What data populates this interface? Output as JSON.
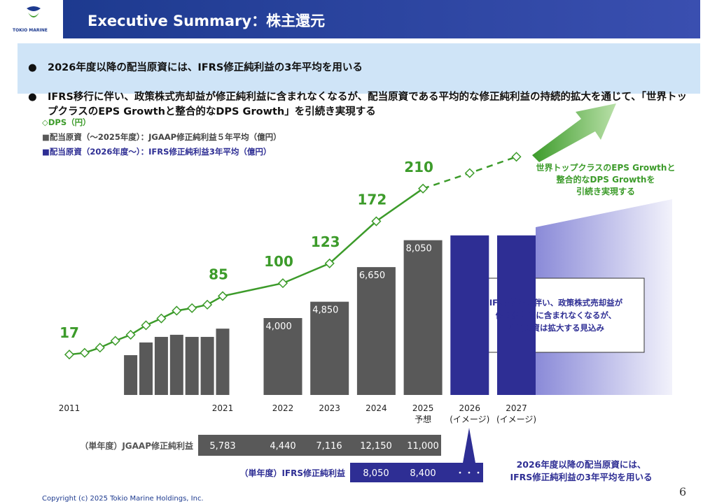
{
  "header": {
    "title": "Executive Summary：株主還元",
    "logo": "TOKIO MARINE"
  },
  "bullets": [
    "2026年度以降の配当原資には、IFRS修正純利益の3年平均を用いる",
    "IFRS移行に伴い、政策株式売却益が修正純利益に含まれなくなるが、配当原資である平均的な修正純利益の持続的拡大を通じて、「世界トップクラスのEPS Growthと整合的なDPS Growth」を引続き実現する"
  ],
  "chart_data": {
    "type": "combo",
    "categories": [
      "2011",
      null,
      null,
      null,
      null,
      null,
      null,
      null,
      null,
      null,
      "2021",
      "2022",
      "2023",
      "2024",
      "2025\n予想",
      "2026\n(イメージ)",
      "2027\n(イメージ)"
    ],
    "ylim": [
      0,
      14000
    ],
    "y2lim": [
      -30,
      283
    ],
    "series": [
      {
        "name": "配当原資（～2025年度）：JGAAP修正純利益５年平均（億円）",
        "type": "bar",
        "color": "#595959",
        "values": [
          null,
          null,
          null,
          null,
          2070,
          2730,
          3020,
          3130,
          3020,
          3020,
          3450,
          4000,
          4850,
          6650,
          8050,
          null,
          null
        ],
        "value_labels": [
          null,
          null,
          null,
          null,
          null,
          null,
          null,
          null,
          null,
          null,
          null,
          "4,000",
          "4,850",
          "6,650",
          "8,050",
          null,
          null
        ]
      },
      {
        "name": "配当原資（2026年度～）：IFRS修正純利益3年平均（億円）",
        "type": "bar",
        "color": "#2e2e94",
        "values": [
          null,
          null,
          null,
          null,
          null,
          null,
          null,
          null,
          null,
          null,
          null,
          null,
          null,
          null,
          null,
          8300,
          8300
        ]
      },
      {
        "name": "DPS（円）",
        "type": "line",
        "axis": "y2",
        "color": "#3c9b2a",
        "dashed_from": "2025\n予想",
        "values": [
          17,
          19,
          25,
          33,
          40,
          51,
          59,
          68,
          71,
          75,
          85,
          100,
          123,
          172,
          210,
          228,
          247
        ],
        "value_labels": [
          "17",
          null,
          null,
          null,
          null,
          null,
          null,
          null,
          null,
          null,
          "85",
          "100",
          "123",
          "172",
          "210",
          null,
          null
        ]
      }
    ],
    "annotations": {
      "growth": "世界トップクラスのEPS Growthと\n整合的なDPS Growthを\n引続き実現する",
      "box": "IFRS移行に伴い、政策株式売却益が\n修正純利益に含まれなくなるが、\n配当原資は拡大する見込み",
      "note": "2026年度以降の配当原資には、\nIFRS修正純利益の3年平均を用いる"
    }
  },
  "table": {
    "rows": [
      {
        "label": "（単年度）JGAAP修正純利益",
        "cells": [
          "5,783",
          "4,440",
          "7,116",
          "12,150",
          "11,000"
        ]
      },
      {
        "label": "（単年度）IFRS修正純利益",
        "cells": [
          "8,050",
          "8,400",
          "・・・"
        ]
      }
    ]
  },
  "footer": {
    "copyright": "Copyright (c) 2025 Tokio Marine Holdings, Inc.",
    "page": "6"
  }
}
